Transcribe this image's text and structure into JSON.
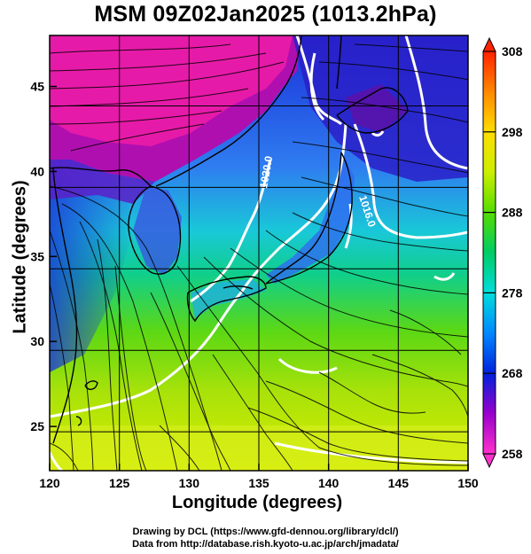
{
  "title": "MSM 09Z02Jan2025 (1013.2hPa)",
  "x_axis": {
    "label": "Longitude (degrees)",
    "range": [
      120,
      150
    ],
    "ticks": [
      120,
      125,
      130,
      135,
      140,
      145,
      150
    ]
  },
  "y_axis": {
    "label": "Latitude  (degrees)",
    "range": [
      22.4,
      48.0
    ],
    "ticks": [
      25,
      30,
      35,
      40,
      45
    ]
  },
  "colorbar": {
    "range": [
      258,
      308
    ],
    "ticks": [
      258,
      268,
      278,
      288,
      298,
      308
    ]
  },
  "isobars": [
    {
      "label": "1020.0",
      "lon": 135.5,
      "lat": 40.7
    },
    {
      "label": "1016.0",
      "lon": 142.3,
      "lat": 38.5
    }
  ],
  "credits": {
    "line1": "Drawing by DCL (https://www.gfd-dennou.org/library/dcl/)",
    "line2": "Data from http://database.rish.kyoto-u.ac.jp/arch/jmadata/"
  }
}
